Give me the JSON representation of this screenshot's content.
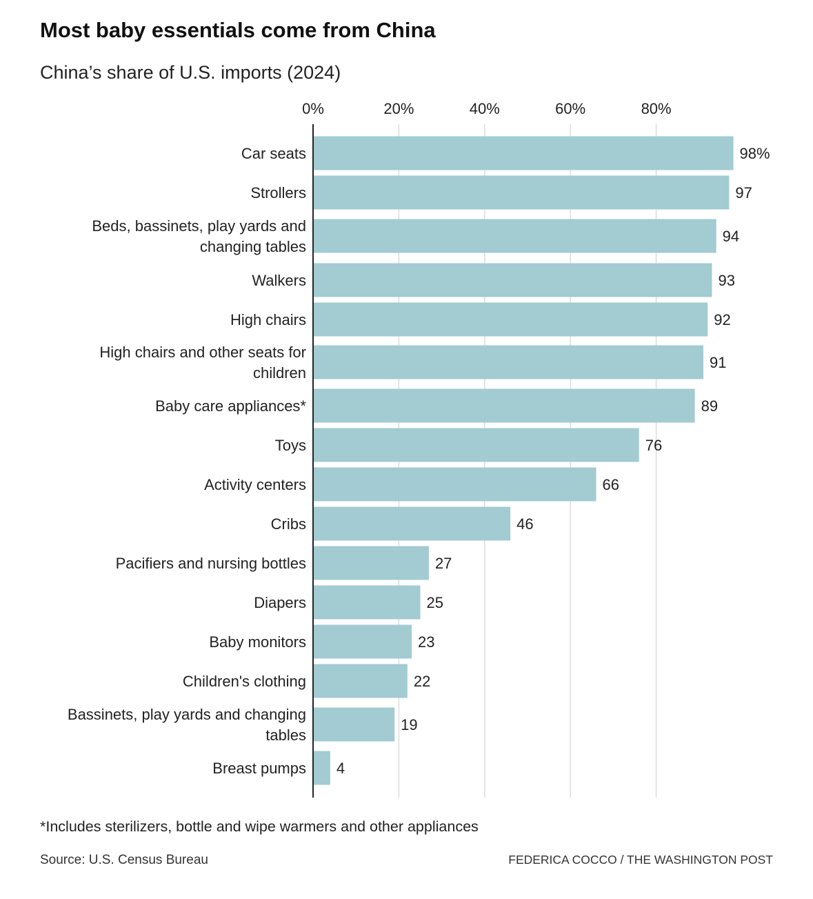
{
  "title": "Most baby essentials come from China",
  "subtitle": "China’s share of U.S. imports (2024)",
  "footnote": "*Includes sterilizers, bottle and wipe warmers and other appliances",
  "source": "Source: U.S. Census Bureau",
  "credit": "FEDERICA COCCO / THE WASHINGTON POST",
  "colors": {
    "bar": "#a2cbd2",
    "grid": "#dddddd",
    "axis": "#222222",
    "text": "#222222"
  },
  "chart_data": {
    "type": "bar",
    "orientation": "horizontal",
    "title": "Most baby essentials come from China",
    "subtitle": "China’s share of U.S. imports (2024)",
    "xlim": [
      0,
      100
    ],
    "ticks": [
      0,
      20,
      40,
      60,
      80
    ],
    "tick_labels": [
      "0%",
      "20%",
      "40%",
      "60%",
      "80%"
    ],
    "grid": true,
    "categories": [
      [
        "Car seats"
      ],
      [
        "Strollers"
      ],
      [
        "Beds, bassinets, play yards and",
        "changing tables"
      ],
      [
        "Walkers"
      ],
      [
        "High chairs"
      ],
      [
        "High chairs and other seats for",
        "children"
      ],
      [
        "Baby care appliances*"
      ],
      [
        "Toys"
      ],
      [
        "Activity centers"
      ],
      [
        "Cribs"
      ],
      [
        "Pacifiers and nursing bottles"
      ],
      [
        "Diapers"
      ],
      [
        "Baby monitors"
      ],
      [
        "Children's clothing"
      ],
      [
        "Bassinets, play yards and changing",
        "tables"
      ],
      [
        "Breast pumps"
      ]
    ],
    "values": [
      98,
      97,
      94,
      93,
      92,
      91,
      89,
      76,
      66,
      46,
      27,
      25,
      23,
      22,
      19,
      4
    ],
    "value_labels": [
      "98%",
      "97",
      "94",
      "93",
      "92",
      "91",
      "89",
      "76",
      "66",
      "46",
      "27",
      "25",
      "23",
      "22",
      "19",
      "4"
    ]
  }
}
